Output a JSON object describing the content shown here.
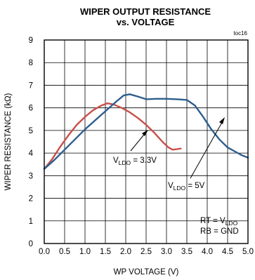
{
  "chart_data": {
    "type": "line",
    "title": "WIPER OUTPUT RESISTANCE",
    "subtitle": "vs. VOLTAGE",
    "figure_id": "toc16",
    "xlabel": "WP VOLTAGE (V)",
    "ylabel": "WIPER RESISTANCE (kΩ)",
    "xlim": [
      0.0,
      5.0
    ],
    "ylim": [
      0,
      9
    ],
    "x_ticks": [
      "0.0",
      "0.5",
      "1.0",
      "1.5",
      "2.0",
      "2.5",
      "3.0",
      "3.5",
      "4.0",
      "4.5",
      "5.0"
    ],
    "y_ticks": [
      "0",
      "1",
      "2",
      "3",
      "4",
      "5",
      "6",
      "7",
      "8",
      "9"
    ],
    "grid": true,
    "series": [
      {
        "label_main": "V",
        "label_sub": "LDO",
        "label_tail": " = 3.3V",
        "color": "#c8504a",
        "points": [
          [
            0.0,
            3.3
          ],
          [
            0.2,
            3.75
          ],
          [
            0.4,
            4.3
          ],
          [
            0.6,
            4.8
          ],
          [
            0.8,
            5.25
          ],
          [
            1.0,
            5.6
          ],
          [
            1.2,
            5.9
          ],
          [
            1.4,
            6.1
          ],
          [
            1.55,
            6.2
          ],
          [
            1.7,
            6.15
          ],
          [
            1.9,
            6.0
          ],
          [
            2.1,
            5.8
          ],
          [
            2.3,
            5.55
          ],
          [
            2.5,
            5.25
          ],
          [
            2.7,
            4.9
          ],
          [
            2.9,
            4.5
          ],
          [
            3.05,
            4.25
          ],
          [
            3.15,
            4.15
          ],
          [
            3.25,
            4.17
          ],
          [
            3.35,
            4.2
          ]
        ]
      },
      {
        "label_main": "V",
        "label_sub": "LDO",
        "label_tail": " = 5V",
        "color": "#2e5e8e",
        "points": [
          [
            0.0,
            3.3
          ],
          [
            0.25,
            3.7
          ],
          [
            0.5,
            4.15
          ],
          [
            0.75,
            4.6
          ],
          [
            1.0,
            5.05
          ],
          [
            1.25,
            5.45
          ],
          [
            1.5,
            5.85
          ],
          [
            1.75,
            6.25
          ],
          [
            1.95,
            6.55
          ],
          [
            2.1,
            6.6
          ],
          [
            2.3,
            6.5
          ],
          [
            2.5,
            6.38
          ],
          [
            2.75,
            6.4
          ],
          [
            3.0,
            6.4
          ],
          [
            3.25,
            6.38
          ],
          [
            3.5,
            6.35
          ],
          [
            3.7,
            6.1
          ],
          [
            3.9,
            5.6
          ],
          [
            4.1,
            5.05
          ],
          [
            4.3,
            4.6
          ],
          [
            4.5,
            4.25
          ],
          [
            4.7,
            4.05
          ],
          [
            4.85,
            3.9
          ],
          [
            5.0,
            3.8
          ]
        ]
      }
    ],
    "conditions": [
      {
        "main": "RT = V",
        "sub": "LDO"
      },
      {
        "main": "RB = GND",
        "sub": ""
      }
    ]
  }
}
